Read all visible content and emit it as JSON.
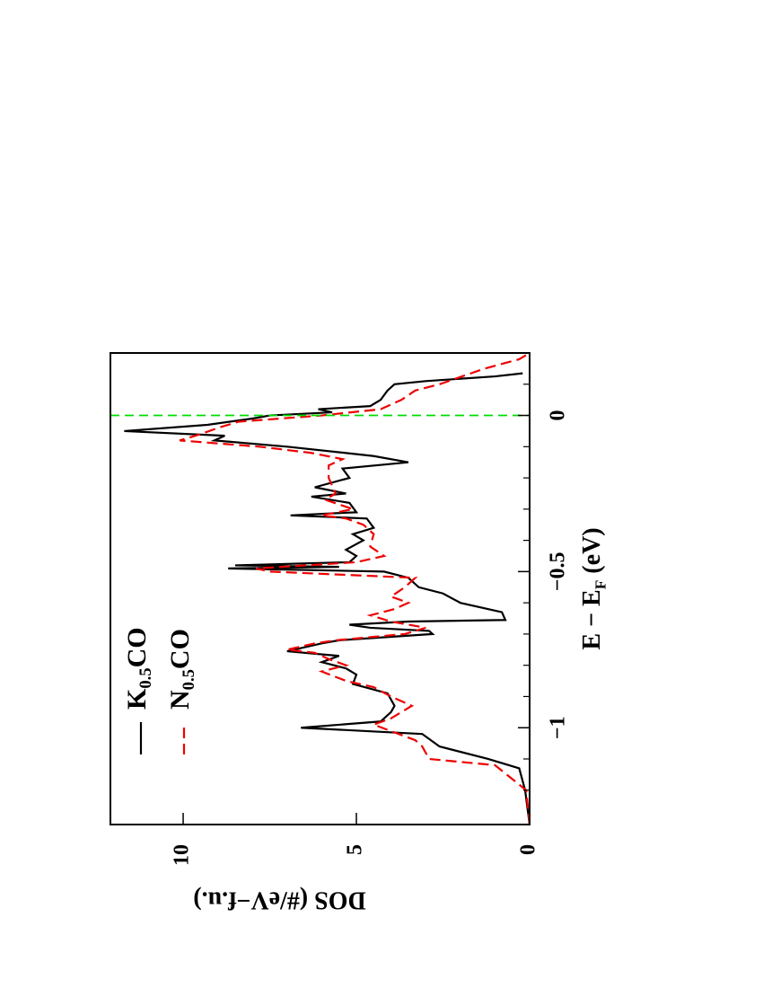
{
  "chart_data": {
    "type": "line",
    "xlabel": "E − EF (eV)",
    "ylabel": "DOS (#/eV−f.u.)",
    "xlim": [
      -1.31,
      0.2
    ],
    "ylim": [
      0,
      12.1
    ],
    "xticks": [
      {
        "value": -1,
        "label": "−1"
      },
      {
        "value": -0.5,
        "label": "−0.5"
      },
      0
    ],
    "xminorticks": [
      -1.2,
      -1.1,
      -0.9,
      -0.8,
      -0.7,
      -0.6,
      -0.4,
      -0.3,
      -0.2,
      -0.1,
      0.1
    ],
    "yticks": [
      0,
      5,
      10
    ],
    "vline": {
      "x": 0,
      "color": "#00dd00"
    },
    "rotated": true,
    "legend": "upper left",
    "series": [
      {
        "name": "K0.5CO",
        "color": "#000000",
        "linestyle": "solid",
        "x": [
          -1.31,
          -1.2,
          -1.13,
          -1.1,
          -1.06,
          -1.02,
          -1.0,
          -0.98,
          -0.95,
          -0.93,
          -0.89,
          -0.86,
          -0.83,
          -0.81,
          -0.79,
          -0.77,
          -0.755,
          -0.73,
          -0.72,
          -0.7,
          -0.69,
          -0.68,
          -0.67,
          -0.66,
          -0.655,
          -0.63,
          -0.6,
          -0.57,
          -0.55,
          -0.52,
          -0.5,
          -0.49,
          -0.485,
          -0.48,
          -0.47,
          -0.45,
          -0.43,
          -0.4,
          -0.38,
          -0.36,
          -0.33,
          -0.32,
          -0.31,
          -0.28,
          -0.26,
          -0.25,
          -0.23,
          -0.2,
          -0.17,
          -0.15,
          -0.13,
          -0.1,
          -0.08,
          -0.065,
          -0.05,
          -0.03,
          -0.01,
          0.0,
          0.01,
          0.02,
          0.03,
          0.05,
          0.08,
          0.1,
          0.11,
          0.125,
          0.135
        ],
        "values": [
          0,
          0.13,
          0.3,
          1.2,
          2.6,
          3.1,
          6.6,
          4.3,
          4.0,
          3.9,
          4.1,
          5.1,
          5.0,
          5.3,
          6.0,
          5.5,
          7.0,
          6.0,
          5.5,
          2.8,
          2.9,
          4.6,
          5.2,
          3.5,
          0.7,
          0.8,
          2.0,
          2.5,
          3.2,
          3.5,
          4.2,
          8.7,
          5.5,
          8.5,
          5.2,
          5.0,
          5.3,
          4.8,
          5.1,
          4.5,
          4.7,
          6.9,
          5.0,
          5.2,
          6.3,
          5.3,
          6.2,
          5.2,
          5.4,
          3.5,
          4.5,
          7.0,
          9.1,
          8.8,
          11.7,
          9.3,
          8.0,
          7.5,
          5.7,
          6.1,
          4.6,
          4.3,
          4.1,
          3.9,
          3.0,
          1.0,
          0.2
        ]
      },
      {
        "name": "N0.5CO",
        "color": "#ee0000",
        "linestyle": "dashed",
        "x": [
          -1.31,
          -1.2,
          -1.12,
          -1.1,
          -1.06,
          -1.04,
          -0.99,
          -0.97,
          -0.93,
          -0.9,
          -0.87,
          -0.85,
          -0.82,
          -0.8,
          -0.78,
          -0.76,
          -0.75,
          -0.73,
          -0.72,
          -0.7,
          -0.68,
          -0.66,
          -0.64,
          -0.62,
          -0.6,
          -0.58,
          -0.55,
          -0.52,
          -0.5,
          -0.49,
          -0.47,
          -0.45,
          -0.42,
          -0.38,
          -0.35,
          -0.33,
          -0.32,
          -0.3,
          -0.27,
          -0.25,
          -0.2,
          -0.16,
          -0.14,
          -0.12,
          -0.1,
          -0.08,
          -0.06,
          -0.04,
          -0.02,
          0.0,
          0.02,
          0.05,
          0.08,
          0.1,
          0.15,
          0.18,
          0.2
        ],
        "values": [
          0,
          0.1,
          1.0,
          2.9,
          3.1,
          3.3,
          4.5,
          4.0,
          3.4,
          4.0,
          4.5,
          5.3,
          6.0,
          5.3,
          5.8,
          6.2,
          7.0,
          6.2,
          5.6,
          3.6,
          3.0,
          4.0,
          4.6,
          3.9,
          3.5,
          4.0,
          3.6,
          3.3,
          7.5,
          7.9,
          5.0,
          4.2,
          4.6,
          4.5,
          4.8,
          5.3,
          6.0,
          5.1,
          5.9,
          5.6,
          5.8,
          5.8,
          5.4,
          6.3,
          7.8,
          10.1,
          9.5,
          9.0,
          8.4,
          6.0,
          4.3,
          3.7,
          3.3,
          2.6,
          1.3,
          0.3,
          0
        ]
      }
    ]
  }
}
